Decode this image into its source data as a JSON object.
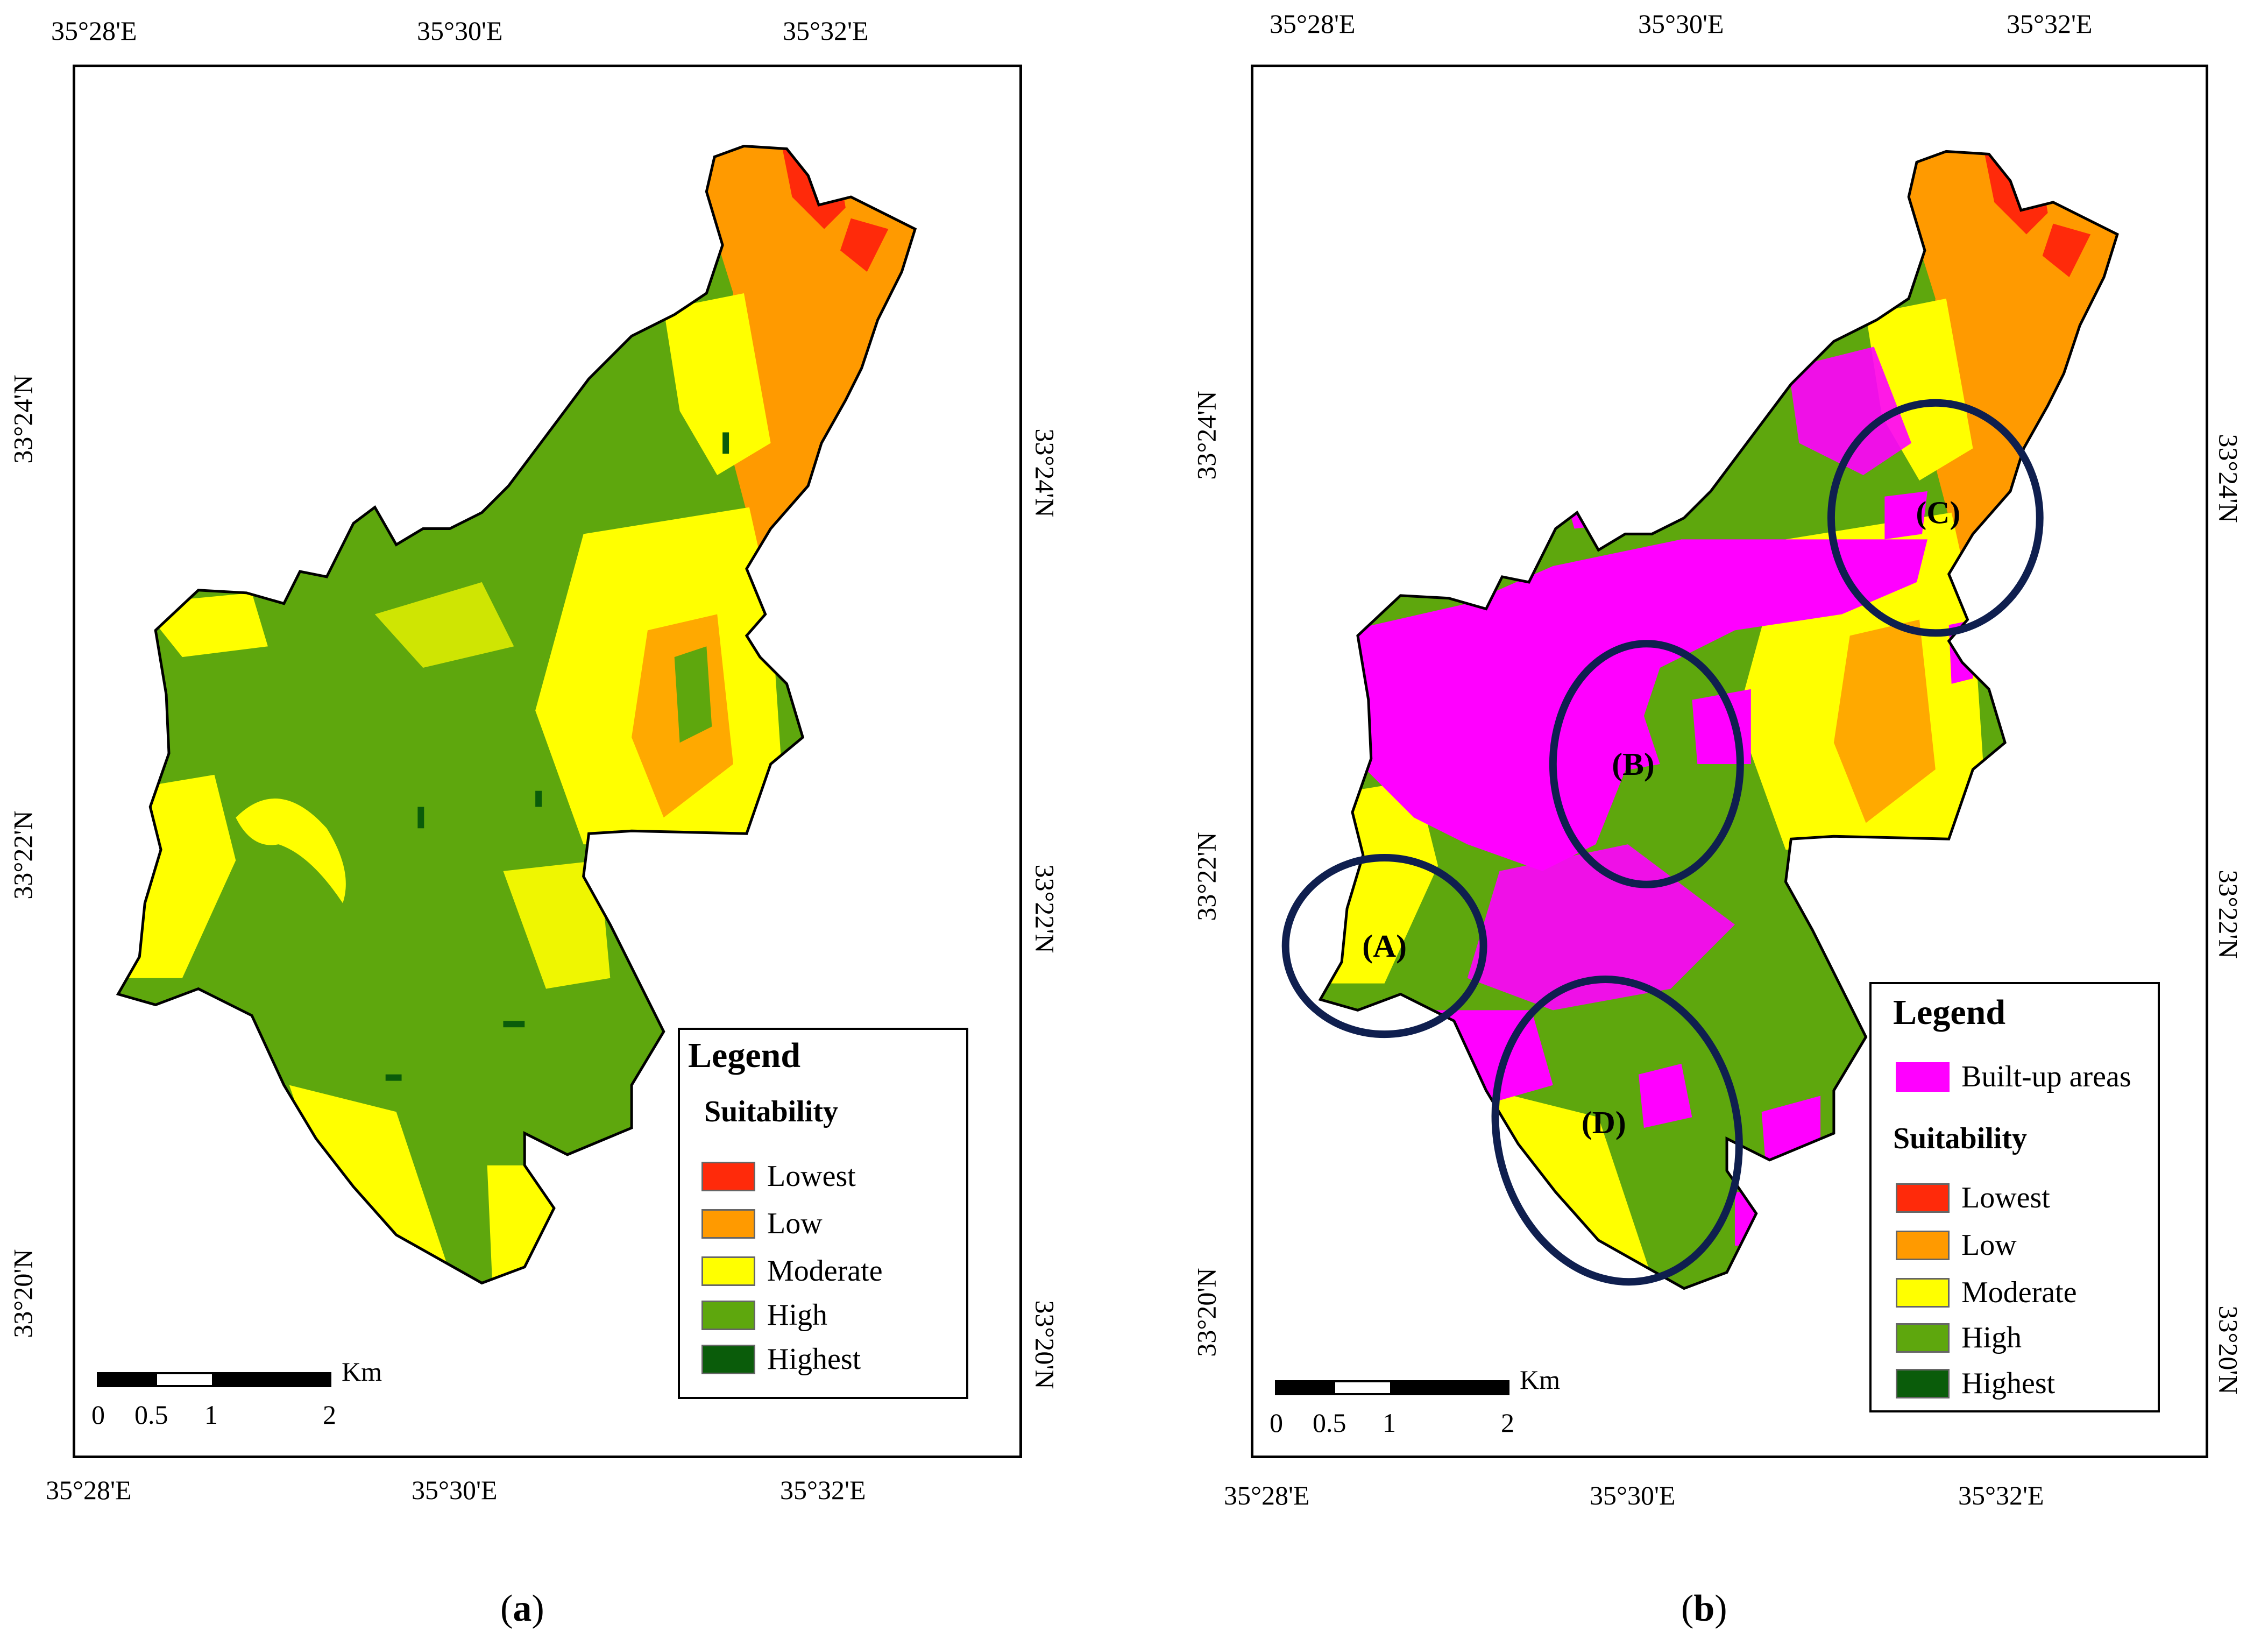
{
  "panel_a": {
    "caption_open": "(",
    "caption_letter": "a",
    "caption_close": ")",
    "top_ticks": [
      "35°28'E",
      "35°30'E",
      "35°32'E"
    ],
    "bottom_ticks": [
      "35°28'E",
      "35°30'E",
      "35°32'E"
    ],
    "left_ticks": [
      "33°24'N",
      "33°22'N",
      "33°20'N"
    ],
    "right_ticks": [
      "33°24'N",
      "33°22'N",
      "33°20'N"
    ],
    "legend": {
      "title": "Legend",
      "subtitle": "Suitability",
      "items": [
        {
          "label": "Lowest",
          "color": "#ff2a0a"
        },
        {
          "label": "Low",
          "color": "#ff9a00"
        },
        {
          "label": "Moderate",
          "color": "#ffff00"
        },
        {
          "label": "High",
          "color": "#5ea70d"
        },
        {
          "label": "Highest",
          "color": "#0a5c0a"
        }
      ]
    },
    "scale": {
      "unit": "Km",
      "labels": [
        "0",
        "0.5",
        "1",
        "2"
      ]
    }
  },
  "panel_b": {
    "caption_open": "(",
    "caption_letter": "b",
    "caption_close": ")",
    "top_ticks": [
      "35°28'E",
      "35°30'E",
      "35°32'E"
    ],
    "bottom_ticks": [
      "35°28'E",
      "35°30'E",
      "35°32'E"
    ],
    "left_ticks": [
      "33°24'N",
      "33°22'N",
      "33°20'N"
    ],
    "right_ticks": [
      "33°24'N",
      "33°22'N",
      "33°20'N"
    ],
    "legend": {
      "title": "Legend",
      "builtup_label": "Built-up areas",
      "builtup_color": "#ff00ff",
      "subtitle": "Suitability",
      "items": [
        {
          "label": "Lowest",
          "color": "#ff2a0a"
        },
        {
          "label": "Low",
          "color": "#ff9a00"
        },
        {
          "label": "Moderate",
          "color": "#ffff00"
        },
        {
          "label": "High",
          "color": "#5ea70d"
        },
        {
          "label": "Highest",
          "color": "#0a5c0a"
        }
      ]
    },
    "scale": {
      "unit": "Km",
      "labels": [
        "0",
        "0.5",
        "1",
        "2"
      ]
    },
    "zones": [
      "(A)",
      "(B)",
      "(C)",
      "(D)"
    ],
    "zone_outline_color": "#0f1f4f"
  }
}
